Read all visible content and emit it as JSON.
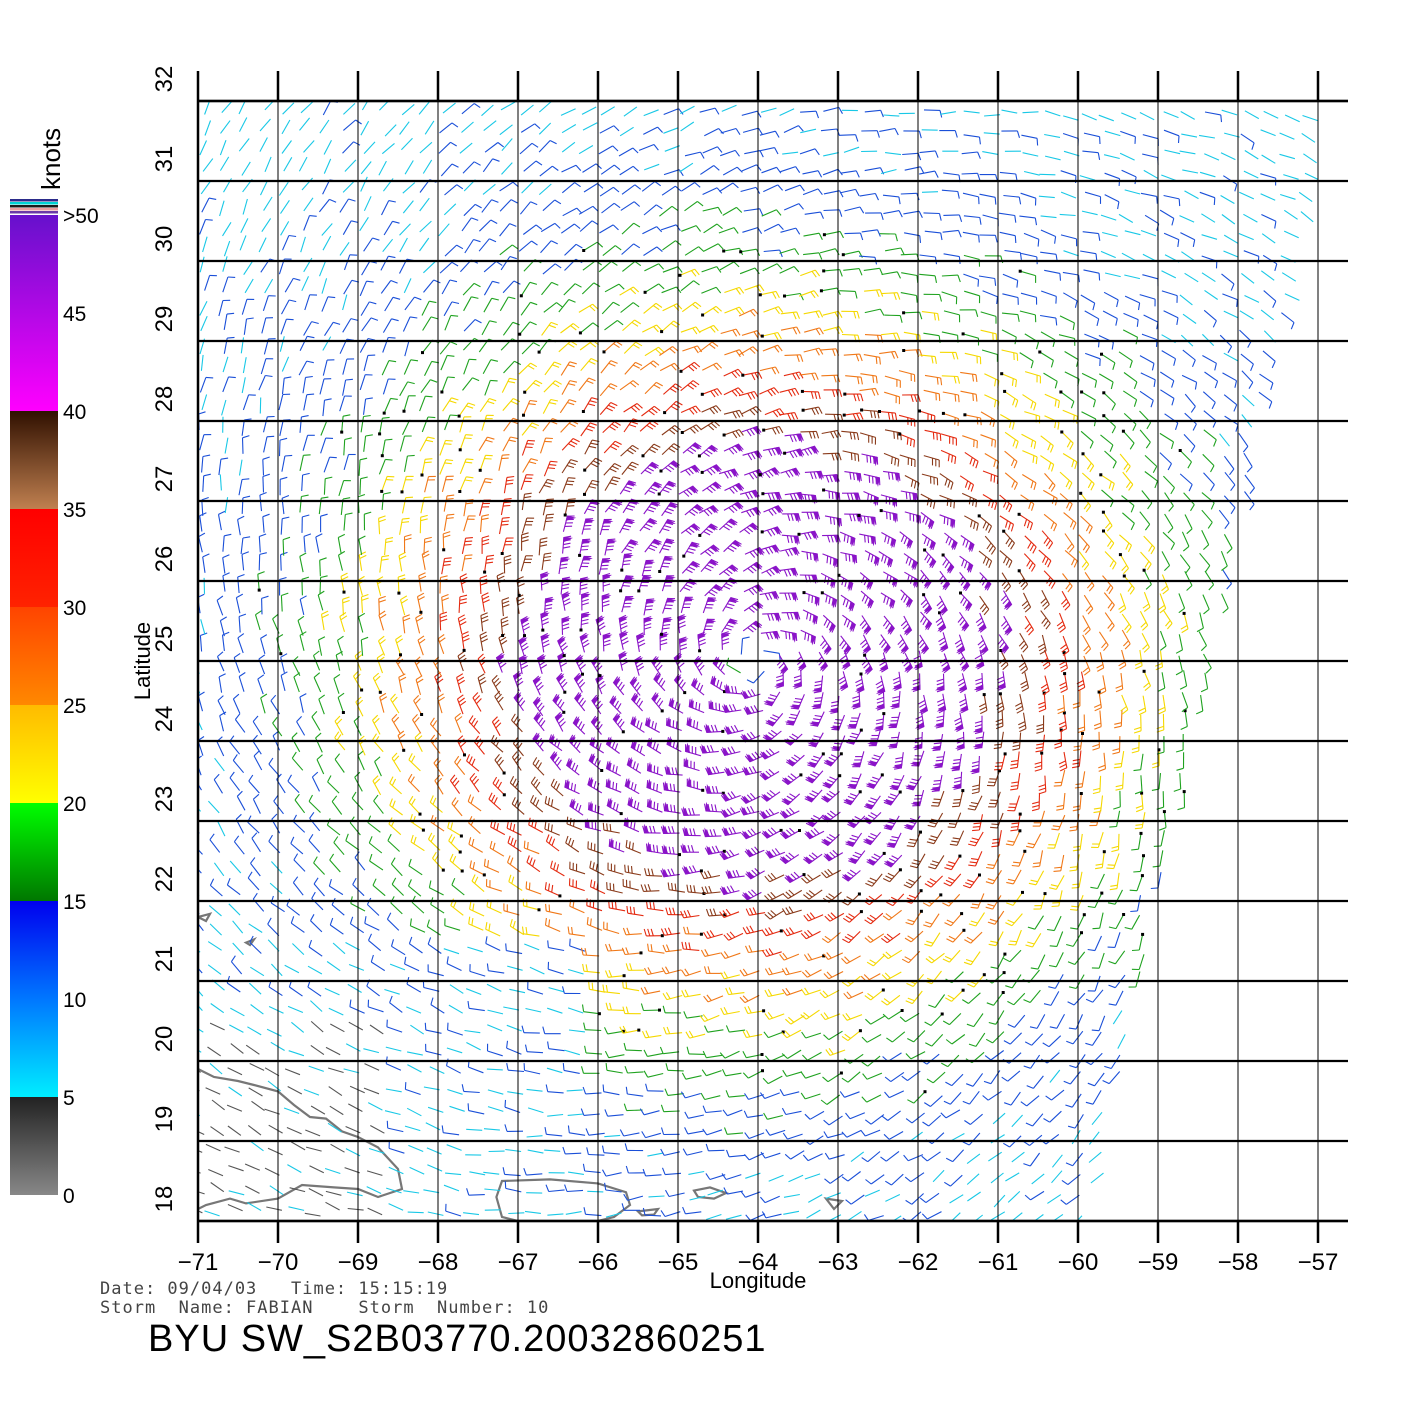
{
  "chart_data": {
    "type": "vector-field",
    "xlabel": "Longitude",
    "ylabel": "Latitude",
    "xlim": [
      -71,
      -57
    ],
    "ylim": [
      18,
      32
    ],
    "x_ticks": [
      "−71",
      "−70",
      "−69",
      "−68",
      "−67",
      "−66",
      "−65",
      "−64",
      "−63",
      "−62",
      "−61",
      "−60",
      "−59",
      "−58",
      "−57"
    ],
    "y_ticks": [
      "18",
      "19",
      "20",
      "21",
      "22",
      "23",
      "24",
      "25",
      "26",
      "27",
      "28",
      "29",
      "30",
      "31",
      "32"
    ],
    "grid": true,
    "storm_center": {
      "lon": -64.0,
      "lat": 25.0
    },
    "swath": {
      "east_edge_lon_at_lat32": -56.9,
      "east_edge_lon_at_lat18": -59.8
    },
    "colorbar": {
      "title": "knots",
      "labels": [
        ">50",
        "45",
        "40",
        "35",
        "30",
        "25",
        "20",
        "15",
        "10",
        "5",
        "0"
      ],
      "bins": [
        {
          "min": 0,
          "max": 5,
          "colors": [
            "#888888",
            "#222222"
          ]
        },
        {
          "min": 5,
          "max": 10,
          "colors": [
            "#00eeff",
            "#0077ff"
          ]
        },
        {
          "min": 10,
          "max": 15,
          "colors": [
            "#0077ff",
            "#0000ee"
          ]
        },
        {
          "min": 15,
          "max": 20,
          "colors": [
            "#007700",
            "#00ff00"
          ]
        },
        {
          "min": 20,
          "max": 25,
          "colors": [
            "#ffff00",
            "#ffbb00"
          ]
        },
        {
          "min": 25,
          "max": 30,
          "colors": [
            "#ff8800",
            "#ff4400"
          ]
        },
        {
          "min": 30,
          "max": 35,
          "colors": [
            "#ff2200",
            "#ff0000"
          ]
        },
        {
          "min": 35,
          "max": 40,
          "colors": [
            "#c08050",
            "#301000"
          ]
        },
        {
          "min": 40,
          "max": 50,
          "colors": [
            "#ff00ff",
            "#6611cc"
          ]
        }
      ]
    },
    "land_color": "#777777"
  },
  "footer": {
    "date_line": "Date: 09/04/03   Time: 15:15:19",
    "storm_line": "Storm  Name: FABIAN    Storm  Number: 10",
    "title": "BYU  SW_S2B03770.20032860251"
  }
}
